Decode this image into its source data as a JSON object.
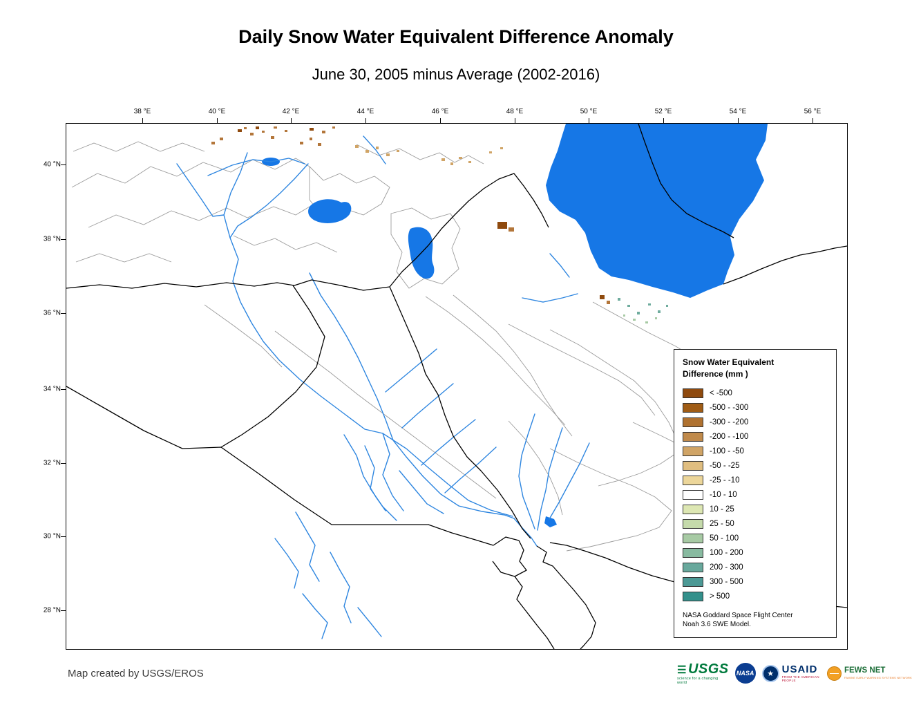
{
  "page": {
    "title": "Daily Snow Water Equivalent Difference Anomaly",
    "subtitle": "June 30, 2005 minus Average (2002-2016)"
  },
  "map": {
    "lon_labels": [
      "38 °E",
      "40 °E",
      "42 °E",
      "44 °E",
      "46 °E",
      "48 °E",
      "50 °E",
      "52 °E",
      "54 °E",
      "56 °E"
    ],
    "lat_labels": [
      "40 °N",
      "38 °N",
      "36 °N",
      "34 °N",
      "32 °N",
      "30 °N",
      "28 °N"
    ],
    "colors": {
      "water": "#1677E6",
      "river": "#2E86E0",
      "border": "#000000",
      "watershed": "#9B9B9B"
    }
  },
  "legend": {
    "title_line1": "Snow Water Equivalent",
    "title_line2": "Difference (mm )",
    "entries": [
      {
        "label": "< -500",
        "color": "#8F4A0E"
      },
      {
        "label": "-500 - -300",
        "color": "#A05C15"
      },
      {
        "label": "-300 - -200",
        "color": "#B07230"
      },
      {
        "label": "-200 - -100",
        "color": "#C08A4B"
      },
      {
        "label": "-100 - -50",
        "color": "#D0A466"
      },
      {
        "label": "-50 - -25",
        "color": "#E0BE80"
      },
      {
        "label": "-25 - -10",
        "color": "#ECD69A"
      },
      {
        "label": "-10 - 10",
        "color": "#FFFFFF"
      },
      {
        "label": "10 - 25",
        "color": "#DDE7B3"
      },
      {
        "label": "25 - 50",
        "color": "#C5DAAB"
      },
      {
        "label": "50 - 100",
        "color": "#A7CAA4"
      },
      {
        "label": "100 - 200",
        "color": "#88BAA0"
      },
      {
        "label": "200 - 300",
        "color": "#68A89C"
      },
      {
        "label": "300 - 500",
        "color": "#4C9995"
      },
      {
        "label": "> 500",
        "color": "#33908B"
      }
    ],
    "note_line1": "NASA Goddard Space Flight Center",
    "note_line2": "Noah 3.6 SWE Model."
  },
  "footer": {
    "credit": "Map created by USGS/EROS",
    "logos": {
      "usgs": {
        "name": "USGS",
        "tagline": "science for a changing world"
      },
      "nasa": {
        "name": "NASA"
      },
      "usaid": {
        "name": "USAID",
        "tagline": "FROM THE AMERICAN PEOPLE"
      },
      "fewsnet": {
        "name": "FEWS NET",
        "tagline": "FAMINE EARLY WARNING SYSTEMS NETWORK"
      }
    }
  }
}
